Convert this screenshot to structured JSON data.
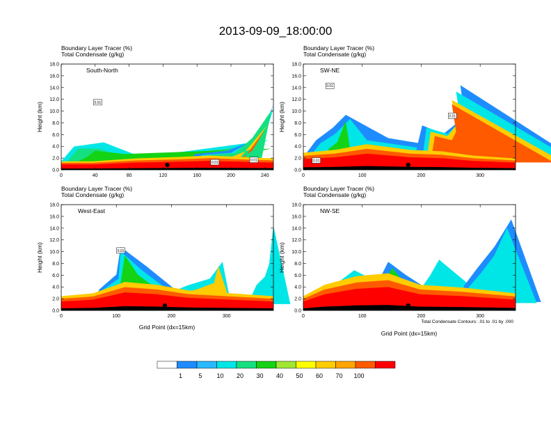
{
  "title": "2013-09-09_18:00:00",
  "header_line1": "Boundary Layer Tracer    (%)",
  "header_line2": "Total Condensate    (g/kg)",
  "ylabel": "Height (km)",
  "xlabel": "Grid Point (dx=15km)",
  "contour_note": "Total Condensate Contours: .01 to .01 by .000",
  "colors": [
    "#ffffff",
    "#1e8cff",
    "#2ab8ff",
    "#00e6e6",
    "#14e080",
    "#14d314",
    "#a0e632",
    "#ffff00",
    "#ffcc00",
    "#ffa500",
    "#ff5a00",
    "#ff0000"
  ],
  "colorbar": {
    "labels": [
      "1",
      "5",
      "10",
      "20",
      "30",
      "40",
      "50",
      "60",
      "70",
      "100"
    ]
  },
  "chart_data": [
    {
      "type": "heatmap",
      "panel": "South-North",
      "label": "South-North",
      "x_ticks": [
        "0",
        "40",
        "80",
        "120",
        "160",
        "200",
        "240"
      ],
      "xlim": [
        0,
        250
      ],
      "y_ticks": [
        "0.0",
        "2.0",
        "4.0",
        "6.0",
        "8.0",
        "10.0",
        "12.0",
        "14.0",
        "16.0",
        "18.0"
      ],
      "ylim": [
        0,
        18
      ],
      "marker_x": 125,
      "contour_labels": [
        {
          "x": 43,
          "y": 11.5,
          "t": "0.01"
        },
        {
          "x": 181,
          "y": 1.3,
          "t": "0.01"
        },
        {
          "x": 227,
          "y": 1.7,
          "t": "0.01"
        }
      ]
    },
    {
      "type": "heatmap",
      "panel": "SW-NE",
      "label": "SW-NE",
      "x_ticks": [
        "0",
        "100",
        "200",
        "300"
      ],
      "xlim": [
        0,
        360
      ],
      "y_ticks": [
        "0.0",
        "2.0",
        "4.0",
        "6.0",
        "8.0",
        "10.0",
        "12.0",
        "14.0",
        "16.0",
        "18.0"
      ],
      "ylim": [
        0,
        18
      ],
      "marker_x": 178,
      "contour_labels": [
        {
          "x": 45,
          "y": 14.3,
          "t": "0.01"
        },
        {
          "x": 253,
          "y": 9.2,
          "t": "0.01"
        },
        {
          "x": 22,
          "y": 1.6,
          "t": "0.01"
        }
      ]
    },
    {
      "type": "heatmap",
      "panel": "West-East",
      "label": "West-East",
      "x_ticks": [
        "0",
        "100",
        "200",
        "300"
      ],
      "xlim": [
        0,
        385
      ],
      "y_ticks": [
        "0.0",
        "2.0",
        "4.0",
        "6.0",
        "8.0",
        "10.0",
        "12.0",
        "14.0",
        "16.0",
        "18.0"
      ],
      "ylim": [
        0,
        18
      ],
      "marker_x": 188,
      "contour_labels": [
        {
          "x": 108,
          "y": 10.2,
          "t": "0.01"
        }
      ]
    },
    {
      "type": "heatmap",
      "panel": "NW-SE",
      "label": "NW-SE",
      "x_ticks": [
        "0",
        "100",
        "200",
        "300"
      ],
      "xlim": [
        0,
        360
      ],
      "y_ticks": [
        "0.0",
        "2.0",
        "4.0",
        "6.0",
        "8.0",
        "10.0",
        "12.0",
        "14.0",
        "16.0",
        "18.0"
      ],
      "ylim": [
        0,
        18
      ],
      "marker_x": 178,
      "contour_labels": []
    }
  ]
}
